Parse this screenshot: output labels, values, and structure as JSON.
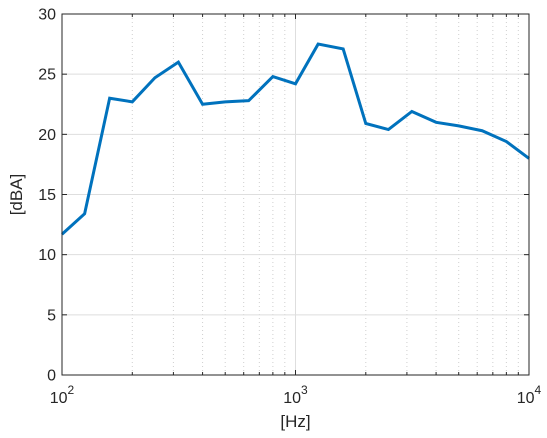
{
  "chart_data": {
    "type": "line",
    "xscale": "log",
    "xlim": [
      100,
      10000
    ],
    "ylim": [
      0,
      30
    ],
    "xlabel": "[Hz]",
    "ylabel": "[dBA]",
    "grid": true,
    "x_ticks": [
      {
        "value": 100,
        "base": "10",
        "exp": "2"
      },
      {
        "value": 1000,
        "base": "10",
        "exp": "3"
      },
      {
        "value": 10000,
        "base": "10",
        "exp": "4"
      }
    ],
    "y_ticks": [
      0,
      5,
      10,
      15,
      20,
      25,
      30
    ],
    "series": [
      {
        "color": "#0072bd",
        "x": [
          100,
          125,
          160,
          200,
          250,
          315,
          400,
          500,
          630,
          800,
          1000,
          1250,
          1600,
          2000,
          2500,
          3150,
          4000,
          5000,
          6300,
          8000,
          10000
        ],
        "y": [
          11.7,
          13.4,
          23.0,
          22.7,
          24.7,
          26.0,
          22.5,
          22.7,
          22.8,
          24.8,
          24.2,
          27.5,
          27.1,
          20.9,
          20.4,
          21.9,
          21.0,
          20.7,
          20.3,
          19.4,
          18.0
        ]
      }
    ]
  }
}
